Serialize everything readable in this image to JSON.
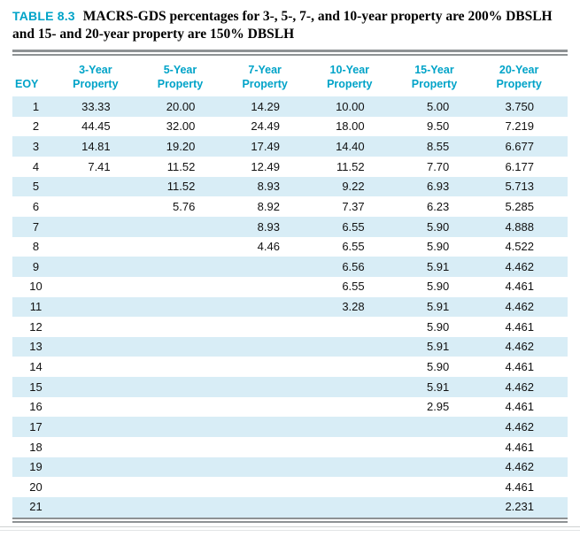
{
  "caption": {
    "label": "TABLE 8.3",
    "text": "MACRS-GDS percentages for 3-, 5-, 7-, and 10-year property are 200% DBSLH and 15- and 20-year property are 150% DBSLH"
  },
  "colors": {
    "accent": "#00A3C8",
    "row_shade": "#D8EDF6",
    "rule_gray": "#8E9294"
  },
  "table": {
    "headers": [
      {
        "top": "",
        "bottom": "EOY"
      },
      {
        "top": "3-Year",
        "bottom": "Property"
      },
      {
        "top": "5-Year",
        "bottom": "Property"
      },
      {
        "top": "7-Year",
        "bottom": "Property"
      },
      {
        "top": "10-Year",
        "bottom": "Property"
      },
      {
        "top": "15-Year",
        "bottom": "Property"
      },
      {
        "top": "20-Year",
        "bottom": "Property"
      }
    ],
    "rows": [
      [
        "1",
        "33.33",
        "20.00",
        "14.29",
        "10.00",
        "5.00",
        "3.750"
      ],
      [
        "2",
        "44.45",
        "32.00",
        "24.49",
        "18.00",
        "9.50",
        "7.219"
      ],
      [
        "3",
        "14.81",
        "19.20",
        "17.49",
        "14.40",
        "8.55",
        "6.677"
      ],
      [
        "4",
        "7.41",
        "11.52",
        "12.49",
        "11.52",
        "7.70",
        "6.177"
      ],
      [
        "5",
        "",
        "11.52",
        "8.93",
        "9.22",
        "6.93",
        "5.713"
      ],
      [
        "6",
        "",
        "5.76",
        "8.92",
        "7.37",
        "6.23",
        "5.285"
      ],
      [
        "7",
        "",
        "",
        "8.93",
        "6.55",
        "5.90",
        "4.888"
      ],
      [
        "8",
        "",
        "",
        "4.46",
        "6.55",
        "5.90",
        "4.522"
      ],
      [
        "9",
        "",
        "",
        "",
        "6.56",
        "5.91",
        "4.462"
      ],
      [
        "10",
        "",
        "",
        "",
        "6.55",
        "5.90",
        "4.461"
      ],
      [
        "11",
        "",
        "",
        "",
        "3.28",
        "5.91",
        "4.462"
      ],
      [
        "12",
        "",
        "",
        "",
        "",
        "5.90",
        "4.461"
      ],
      [
        "13",
        "",
        "",
        "",
        "",
        "5.91",
        "4.462"
      ],
      [
        "14",
        "",
        "",
        "",
        "",
        "5.90",
        "4.461"
      ],
      [
        "15",
        "",
        "",
        "",
        "",
        "5.91",
        "4.462"
      ],
      [
        "16",
        "",
        "",
        "",
        "",
        "2.95",
        "4.461"
      ],
      [
        "17",
        "",
        "",
        "",
        "",
        "",
        "4.462"
      ],
      [
        "18",
        "",
        "",
        "",
        "",
        "",
        "4.461"
      ],
      [
        "19",
        "",
        "",
        "",
        "",
        "",
        "4.462"
      ],
      [
        "20",
        "",
        "",
        "",
        "",
        "",
        "4.461"
      ],
      [
        "21",
        "",
        "",
        "",
        "",
        "",
        "2.231"
      ]
    ]
  }
}
